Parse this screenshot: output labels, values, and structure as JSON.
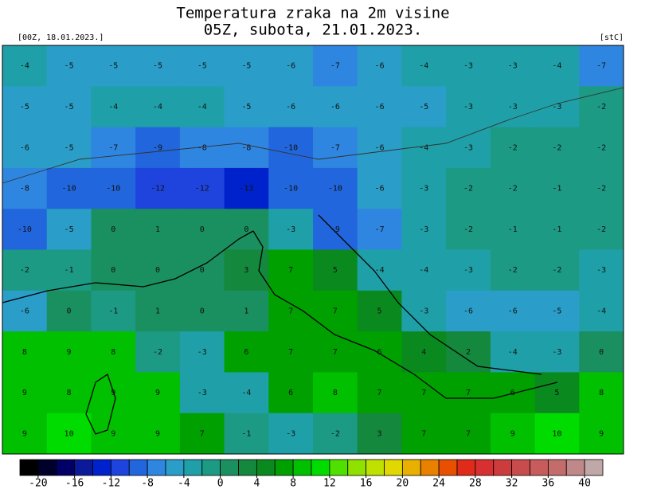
{
  "header": {
    "title_line1": "Temperatura zraka na 2m visine",
    "title_line2": "05Z, subota, 21.01.2023.",
    "run": "[00Z, 18.01.2023.]",
    "unit": "[stC]"
  },
  "map": {
    "values": [
      [
        -4,
        -5,
        -5,
        -5,
        -5,
        -5,
        -6,
        -7,
        -6,
        -4,
        -3,
        -3,
        -4,
        -7
      ],
      [
        -5,
        -5,
        -4,
        -4,
        -4,
        -5,
        -6,
        -6,
        -6,
        -5,
        -3,
        -3,
        -3,
        -2
      ],
      [
        -6,
        -5,
        -7,
        -9,
        -8,
        -8,
        -10,
        -7,
        -6,
        -4,
        -3,
        -2,
        -2,
        -2
      ],
      [
        -8,
        -10,
        -10,
        -12,
        -12,
        -13,
        -10,
        -10,
        -6,
        -3,
        -2,
        -2,
        -1,
        -2
      ],
      [
        -10,
        -5,
        0,
        1,
        0,
        0,
        -3,
        -9,
        -7,
        -3,
        -2,
        -1,
        -1,
        -2
      ],
      [
        -2,
        -1,
        0,
        0,
        0,
        3,
        7,
        5,
        -4,
        -4,
        -3,
        -2,
        -2,
        -3
      ],
      [
        -6,
        0,
        -1,
        1,
        0,
        1,
        7,
        7,
        5,
        -3,
        -6,
        -6,
        -5,
        -4
      ],
      [
        8,
        9,
        8,
        -2,
        -3,
        6,
        7,
        7,
        6,
        4,
        2,
        -4,
        -3,
        0
      ],
      [
        9,
        8,
        9,
        9,
        -3,
        -4,
        6,
        8,
        7,
        7,
        7,
        6,
        5,
        8
      ],
      [
        9,
        10,
        9,
        9,
        7,
        -1,
        -3,
        -2,
        3,
        7,
        7,
        9,
        10,
        9
      ]
    ]
  },
  "colorbar": {
    "lim": [
      -22,
      42
    ],
    "ticks": [
      -20,
      -16,
      -12,
      -8,
      -4,
      0,
      4,
      8,
      12,
      16,
      20,
      24,
      28,
      32,
      36,
      40
    ],
    "colors": [
      "#000000",
      "#00002a",
      "#000066",
      "#0a1a99",
      "#0022cc",
      "#1f44dd",
      "#2266dd",
      "#2f86e0",
      "#2a9ec8",
      "#1fa0a8",
      "#1c9a84",
      "#1a9060",
      "#14883c",
      "#0a8a1e",
      "#00a000",
      "#00c000",
      "#00dc00",
      "#50e000",
      "#90e000",
      "#c0e000",
      "#e0d800",
      "#e8b000",
      "#e88000",
      "#e85000",
      "#e02a1a",
      "#d83030",
      "#cc3c3c",
      "#c84c4c",
      "#c85c5c",
      "#c46c6c",
      "#c08888",
      "#c0a8a8"
    ]
  }
}
